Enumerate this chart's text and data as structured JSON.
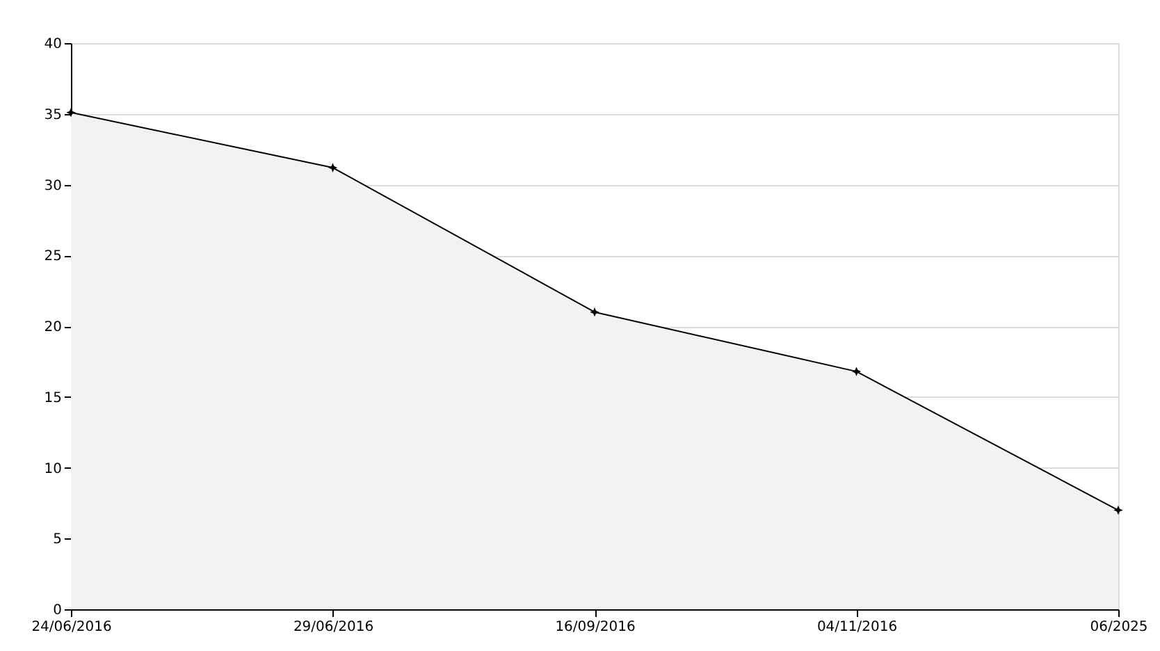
{
  "chart_data": {
    "type": "area",
    "categories": [
      "24/06/2016",
      "29/06/2016",
      "16/09/2016",
      "04/11/2016",
      "06/2025"
    ],
    "series": [
      {
        "color": "#000000",
        "values": [
          35.1,
          31.2,
          21.0,
          16.8,
          7.0
        ]
      }
    ],
    "ylim": [
      0,
      40
    ],
    "yticks": [
      0,
      5,
      10,
      15,
      20,
      25,
      30,
      35,
      40
    ],
    "grid": "y",
    "marker": "star",
    "line_style": "solid"
  }
}
